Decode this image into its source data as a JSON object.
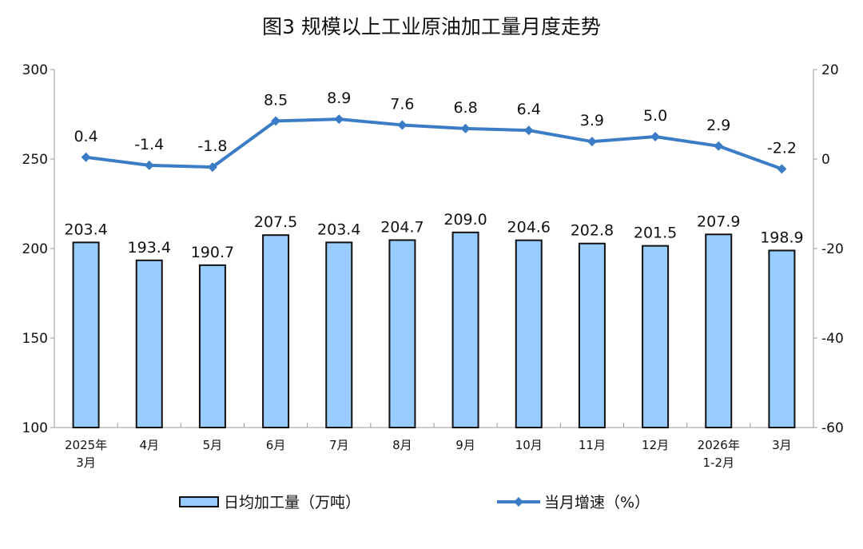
{
  "chart_data": {
    "type": "bar+line",
    "title": "图3 规模以上工业原油加工量月度走势",
    "categories": [
      [
        "2025年",
        "3月"
      ],
      [
        "4月"
      ],
      [
        "5月"
      ],
      [
        "6月"
      ],
      [
        "7月"
      ],
      [
        "8月"
      ],
      [
        "9月"
      ],
      [
        "10月"
      ],
      [
        "11月"
      ],
      [
        "12月"
      ],
      [
        "2026年",
        "1-2月"
      ],
      [
        "3月"
      ]
    ],
    "series": [
      {
        "name": "日均加工量（万吨）",
        "type": "bar",
        "axis": "left",
        "color": "#99CCFF",
        "values": [
          203.4,
          193.4,
          190.7,
          207.5,
          203.4,
          204.7,
          209.0,
          204.6,
          202.8,
          201.5,
          207.9,
          198.9
        ]
      },
      {
        "name": "当月增速（%）",
        "type": "line",
        "axis": "right",
        "color": "#3A7CC6",
        "marker": "diamond",
        "values": [
          0.4,
          -1.4,
          -1.8,
          8.5,
          8.9,
          7.6,
          6.8,
          6.4,
          3.9,
          5.0,
          2.9,
          -2.2
        ]
      }
    ],
    "left_axis": {
      "ylim": [
        100,
        300
      ],
      "ticks": [
        100,
        150,
        200,
        250,
        300
      ]
    },
    "right_axis": {
      "ylim": [
        -60,
        20
      ],
      "ticks": [
        -60,
        -40,
        -20,
        0,
        20
      ]
    },
    "grid": false,
    "legend": "bottom"
  }
}
